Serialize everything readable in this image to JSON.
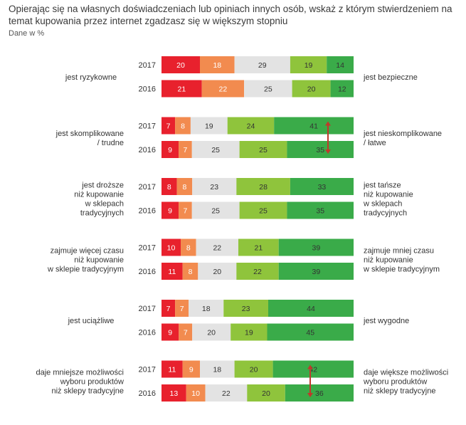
{
  "chart_data": {
    "type": "bar",
    "stacked": true,
    "orientation": "horizontal",
    "title": "Opierając się na własnych doświadczeniach lub opiniach innych osób, wskaż z którym stwierdzeniem na temat kupowania przez internet zgadzasz się w większym stopniu",
    "subtitle": "Dane w %",
    "colors": [
      "#e8212d",
      "#f28b4f",
      "#e3e3e3",
      "#8fc43c",
      "#3aab49"
    ],
    "groups": [
      {
        "left_label": [
          "jest ryzykowne"
        ],
        "right_label": [
          "jest bezpieczne"
        ],
        "rows": [
          {
            "year": "2017",
            "values": [
              20,
              18,
              29,
              19,
              14
            ]
          },
          {
            "year": "2016",
            "values": [
              21,
              22,
              25,
              20,
              12
            ]
          }
        ],
        "arrow": false
      },
      {
        "left_label": [
          "jest skomplikowane",
          "/ trudne"
        ],
        "right_label": [
          "jest nieskomplikowane",
          "/ łatwe"
        ],
        "rows": [
          {
            "year": "2017",
            "values": [
              7,
              8,
              19,
              24,
              41
            ]
          },
          {
            "year": "2016",
            "values": [
              9,
              7,
              25,
              25,
              35
            ]
          }
        ],
        "arrow": true
      },
      {
        "left_label": [
          "jest droższe",
          "niż kupowanie",
          "w sklepach",
          "tradycyjnych"
        ],
        "right_label": [
          "jest tańsze",
          "niż kupowanie",
          "w sklepach",
          "tradycyjnych"
        ],
        "rows": [
          {
            "year": "2017",
            "values": [
              8,
              8,
              23,
              28,
              33
            ]
          },
          {
            "year": "2016",
            "values": [
              9,
              7,
              25,
              25,
              35
            ]
          }
        ],
        "arrow": false
      },
      {
        "left_label": [
          "zajmuje więcej czasu",
          "niż kupowanie",
          "w sklepie tradycyjnym"
        ],
        "right_label": [
          "zajmuje mniej czasu",
          "niż kupowanie",
          "w sklepie tradycyjnym"
        ],
        "rows": [
          {
            "year": "2017",
            "values": [
              10,
              8,
              22,
              21,
              39
            ]
          },
          {
            "year": "2016",
            "values": [
              11,
              8,
              20,
              22,
              39
            ]
          }
        ],
        "arrow": false
      },
      {
        "left_label": [
          "jest uciążliwe"
        ],
        "right_label": [
          "jest wygodne"
        ],
        "rows": [
          {
            "year": "2017",
            "values": [
              7,
              7,
              18,
              23,
              44
            ]
          },
          {
            "year": "2016",
            "values": [
              9,
              7,
              20,
              19,
              45
            ]
          }
        ],
        "arrow": false
      },
      {
        "left_label": [
          "daje mniejsze możliwości",
          "wyboru produktów",
          "niż sklepy tradycyjne"
        ],
        "right_label": [
          "daje większe możliwości",
          "wyboru produktów",
          "niż sklepy tradycyjne"
        ],
        "rows": [
          {
            "year": "2017",
            "values": [
              11,
              9,
              18,
              20,
              42
            ]
          },
          {
            "year": "2016",
            "values": [
              13,
              10,
              22,
              20,
              36
            ]
          }
        ],
        "arrow": true
      }
    ]
  }
}
